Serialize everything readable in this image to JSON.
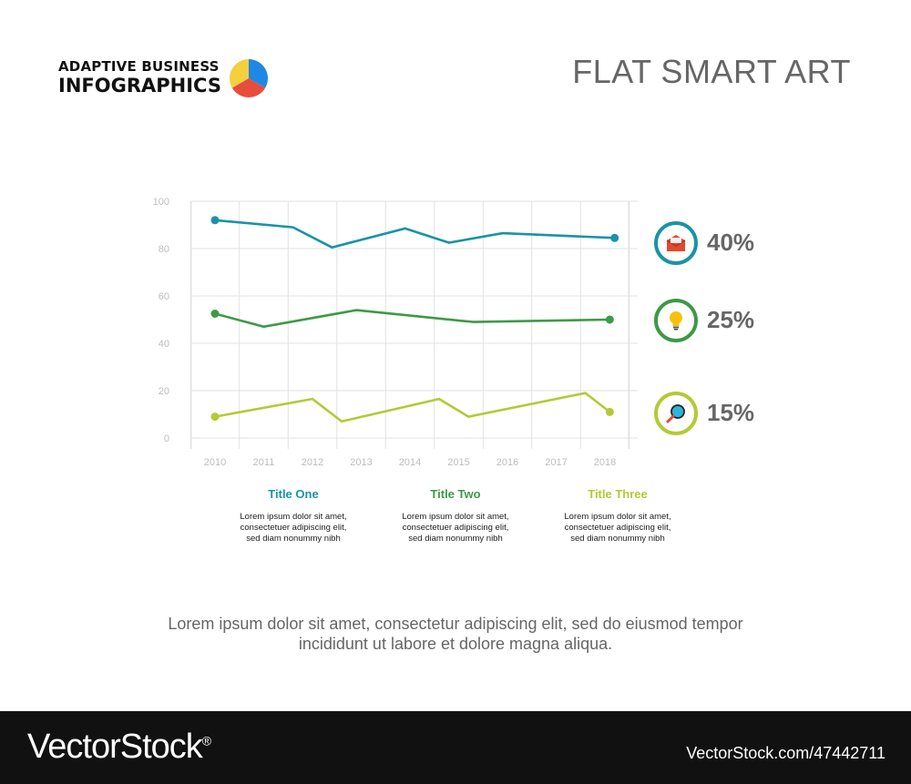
{
  "brand": {
    "line1": "ADAPTIVE BUSINESS",
    "line2": "INFOGRAPHICS",
    "logo_colors": [
      "#1e88e5",
      "#f4d03f",
      "#e74c3c"
    ]
  },
  "title": "FLAT SMART ART",
  "chart_data": {
    "type": "line",
    "x": [
      "2010",
      "2011",
      "2012",
      "2013",
      "2014",
      "2015",
      "2016",
      "2017",
      "2018"
    ],
    "ylim": [
      0,
      100
    ],
    "yticks": [
      0,
      20,
      40,
      60,
      80,
      100
    ],
    "grid": true,
    "series": [
      {
        "color": "#1a93a6",
        "points": [
          [
            2010,
            92
          ],
          [
            2011.6,
            89
          ],
          [
            2012.4,
            80.5
          ],
          [
            2013.9,
            88.5
          ],
          [
            2014.8,
            82.5
          ],
          [
            2015.9,
            86.5
          ],
          [
            2018.2,
            84.5
          ]
        ]
      },
      {
        "color": "#3d9a45",
        "points": [
          [
            2010,
            52.5
          ],
          [
            2011,
            47
          ],
          [
            2012.9,
            54
          ],
          [
            2015.3,
            49
          ],
          [
            2018.1,
            50
          ]
        ]
      },
      {
        "color": "#b5c935",
        "points": [
          [
            2010,
            9
          ],
          [
            2012,
            16.5
          ],
          [
            2012.6,
            7
          ],
          [
            2014.6,
            16.5
          ],
          [
            2015.2,
            9
          ],
          [
            2017.6,
            19
          ],
          [
            2018.1,
            11
          ]
        ]
      }
    ]
  },
  "stats": [
    {
      "value": "40%",
      "color": "#1a93a6",
      "icon": "envelope-icon"
    },
    {
      "value": "25%",
      "color": "#3d9a45",
      "icon": "lightbulb-icon"
    },
    {
      "value": "15%",
      "color": "#b5c935",
      "icon": "magnifier-icon"
    }
  ],
  "columns": [
    {
      "title": "Title One",
      "color": "#1a93a6",
      "body": [
        "Lorem ipsum dolor sit amet,",
        "consectetuer adipiscing elit,",
        "sed diam nonummy nibh"
      ]
    },
    {
      "title": "Title Two",
      "color": "#3d9a45",
      "body": [
        "Lorem ipsum dolor sit amet,",
        "consectetuer adipiscing elit,",
        "sed diam nonummy nibh"
      ]
    },
    {
      "title": "Title Three",
      "color": "#b5c935",
      "body": [
        "Lorem ipsum dolor sit amet,",
        "consectetuer adipiscing elit,",
        "sed diam nonummy nibh"
      ]
    }
  ],
  "footer": {
    "line1": "Lorem ipsum dolor sit amet, consectetur adipiscing elit, sed do eiusmod tempor",
    "line2": "incididunt ut labore et dolore magna aliqua."
  },
  "watermark": {
    "logo": "VectorStock",
    "registered": "®",
    "id": "VectorStock.com/47442711"
  }
}
